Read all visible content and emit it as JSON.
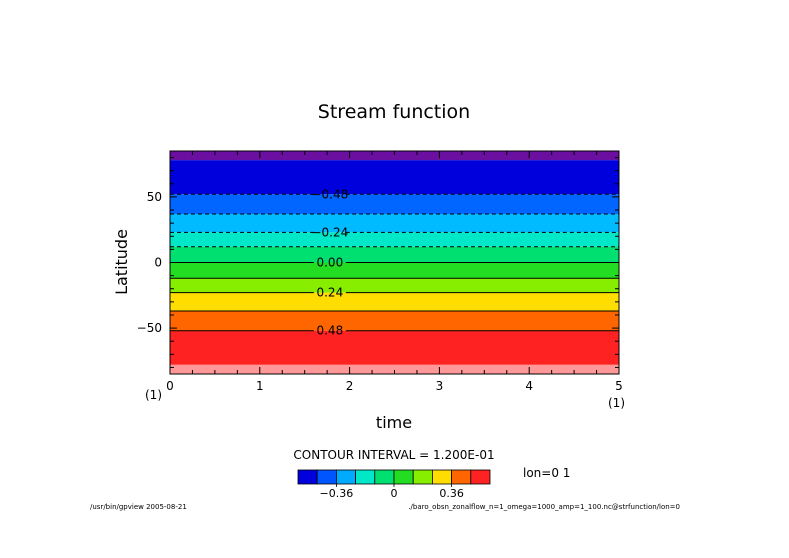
{
  "chart_data": {
    "type": "heatmap",
    "title": "Stream function",
    "xlabel": "time",
    "ylabel": "Latitude",
    "xlim": [
      0,
      5
    ],
    "ylim": [
      -85,
      85
    ],
    "x_ticks": [
      "0",
      "1",
      "2",
      "3",
      "4",
      "5"
    ],
    "y_ticks": [
      {
        "value": 50,
        "label": "50"
      },
      {
        "value": 0,
        "label": "0"
      },
      {
        "value": -50,
        "label": "−50"
      }
    ],
    "x_units_left": "(1)",
    "x_units_right": "(1)",
    "bands": [
      {
        "lat_top": 85,
        "lat_bottom": 78,
        "color": "#6a0fa0"
      },
      {
        "lat_top": 78,
        "lat_bottom": 52,
        "color": "#0000dd"
      },
      {
        "lat_top": 52,
        "lat_bottom": 37,
        "color": "#0066ff"
      },
      {
        "lat_top": 37,
        "lat_bottom": 23,
        "color": "#00bbff"
      },
      {
        "lat_top": 23,
        "lat_bottom": 12,
        "color": "#00e8c8"
      },
      {
        "lat_top": 12,
        "lat_bottom": 0,
        "color": "#00e070"
      },
      {
        "lat_top": 0,
        "lat_bottom": -12,
        "color": "#22dd22"
      },
      {
        "lat_top": -12,
        "lat_bottom": -23,
        "color": "#88ee00"
      },
      {
        "lat_top": -23,
        "lat_bottom": -37,
        "color": "#ffdd00"
      },
      {
        "lat_top": -37,
        "lat_bottom": -52,
        "color": "#ff6600"
      },
      {
        "lat_top": -52,
        "lat_bottom": -78,
        "color": "#ff2222"
      },
      {
        "lat_top": -78,
        "lat_bottom": -85,
        "color": "#ff9999"
      }
    ],
    "contours": [
      {
        "lat": 52,
        "dashed": true,
        "label": "−0.48"
      },
      {
        "lat": 37,
        "dashed": true,
        "label": ""
      },
      {
        "lat": 23,
        "dashed": true,
        "label": "−0.24"
      },
      {
        "lat": 12,
        "dashed": true,
        "label": ""
      },
      {
        "lat": 0,
        "dashed": false,
        "label": "0.00"
      },
      {
        "lat": -12,
        "dashed": false,
        "label": ""
      },
      {
        "lat": -23,
        "dashed": false,
        "label": "0.24"
      },
      {
        "lat": -37,
        "dashed": false,
        "label": ""
      },
      {
        "lat": -52,
        "dashed": false,
        "label": "0.48"
      }
    ],
    "contour_label_time": 1.78,
    "contour_interval_text": "CONTOUR INTERVAL = 1.200E-01",
    "colorbar": {
      "colors": [
        "#0000dd",
        "#0055ff",
        "#00aaff",
        "#00e8c8",
        "#00e070",
        "#22dd22",
        "#88ee00",
        "#ffdd00",
        "#ff6600",
        "#ff2222"
      ],
      "labels": [
        "−0.36",
        "0",
        "0.36"
      ]
    },
    "annotation": "lon=0 1",
    "footer_left": "/usr/bin/gpview  2005-08-21",
    "footer_right": "./baro_obsn_zonalflow_n=1_omega=1000_amp=1_100.nc@strfunction/lon=0"
  }
}
